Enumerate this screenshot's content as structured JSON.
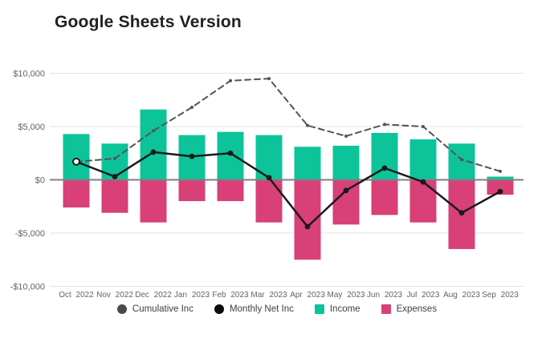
{
  "title": "Google Sheets Version",
  "colors": {
    "income": "#0dc49a",
    "expenses": "#d84077",
    "monthly_net": "#1a1a1a",
    "cumulative": "#545454",
    "gridline": "#e3e3e3",
    "zero_line": "#7f7f7f",
    "axis_text": "#5f6368"
  },
  "legend": {
    "items": [
      {
        "label": "Cumulative Inc",
        "marker": "circle",
        "color": "#4a4a4a"
      },
      {
        "label": "Monthly Net Inc",
        "marker": "circle",
        "color": "#0a0a0a"
      },
      {
        "label": "Income",
        "marker": "square",
        "color": "#0dc49a"
      },
      {
        "label": "Expenses",
        "marker": "square",
        "color": "#d84077"
      }
    ]
  },
  "chart_data": {
    "type": "combo",
    "title": "Google Sheets Version",
    "categories": [
      "Oct 2022",
      "Nov 2022",
      "Dec 2022",
      "Jan 2023",
      "Feb 2023",
      "Mar 2023",
      "Apr 2023",
      "May 2023",
      "Jun 2023",
      "Jul 2023",
      "Aug 2023",
      "Sep 2023"
    ],
    "series": [
      {
        "name": "Income",
        "type": "bar",
        "color": "#0dc49a",
        "values": [
          4300,
          3400,
          6600,
          4200,
          4500,
          4200,
          3100,
          3200,
          4400,
          3800,
          3400,
          300
        ]
      },
      {
        "name": "Expenses",
        "type": "bar",
        "color": "#d84077",
        "values": [
          -2600,
          -3100,
          -4000,
          -2000,
          -2000,
          -4000,
          -7500,
          -4200,
          -3300,
          -4000,
          -6500,
          -1400
        ]
      },
      {
        "name": "Monthly Net Inc",
        "type": "line",
        "style": "solid",
        "color": "#1a1a1a",
        "values": [
          1700,
          300,
          2600,
          2200,
          2500,
          200,
          -4400,
          -1000,
          1100,
          -200,
          -3100,
          -1100
        ]
      },
      {
        "name": "Cumulative Inc",
        "type": "line",
        "style": "dashed",
        "color": "#545454",
        "values": [
          1700,
          2000,
          4600,
          6800,
          9300,
          9500,
          5100,
          4100,
          5200,
          5000,
          1900,
          800
        ]
      }
    ],
    "y_axis": {
      "tick_labels": [
        "$10,000",
        "$5,000",
        "$0",
        "-$5,000",
        "-$10,000"
      ],
      "tick_values": [
        10000,
        5000,
        0,
        -5000,
        -10000
      ],
      "min": -10000,
      "max": 10000
    },
    "grid": "horizontal",
    "legend_position": "bottom"
  }
}
